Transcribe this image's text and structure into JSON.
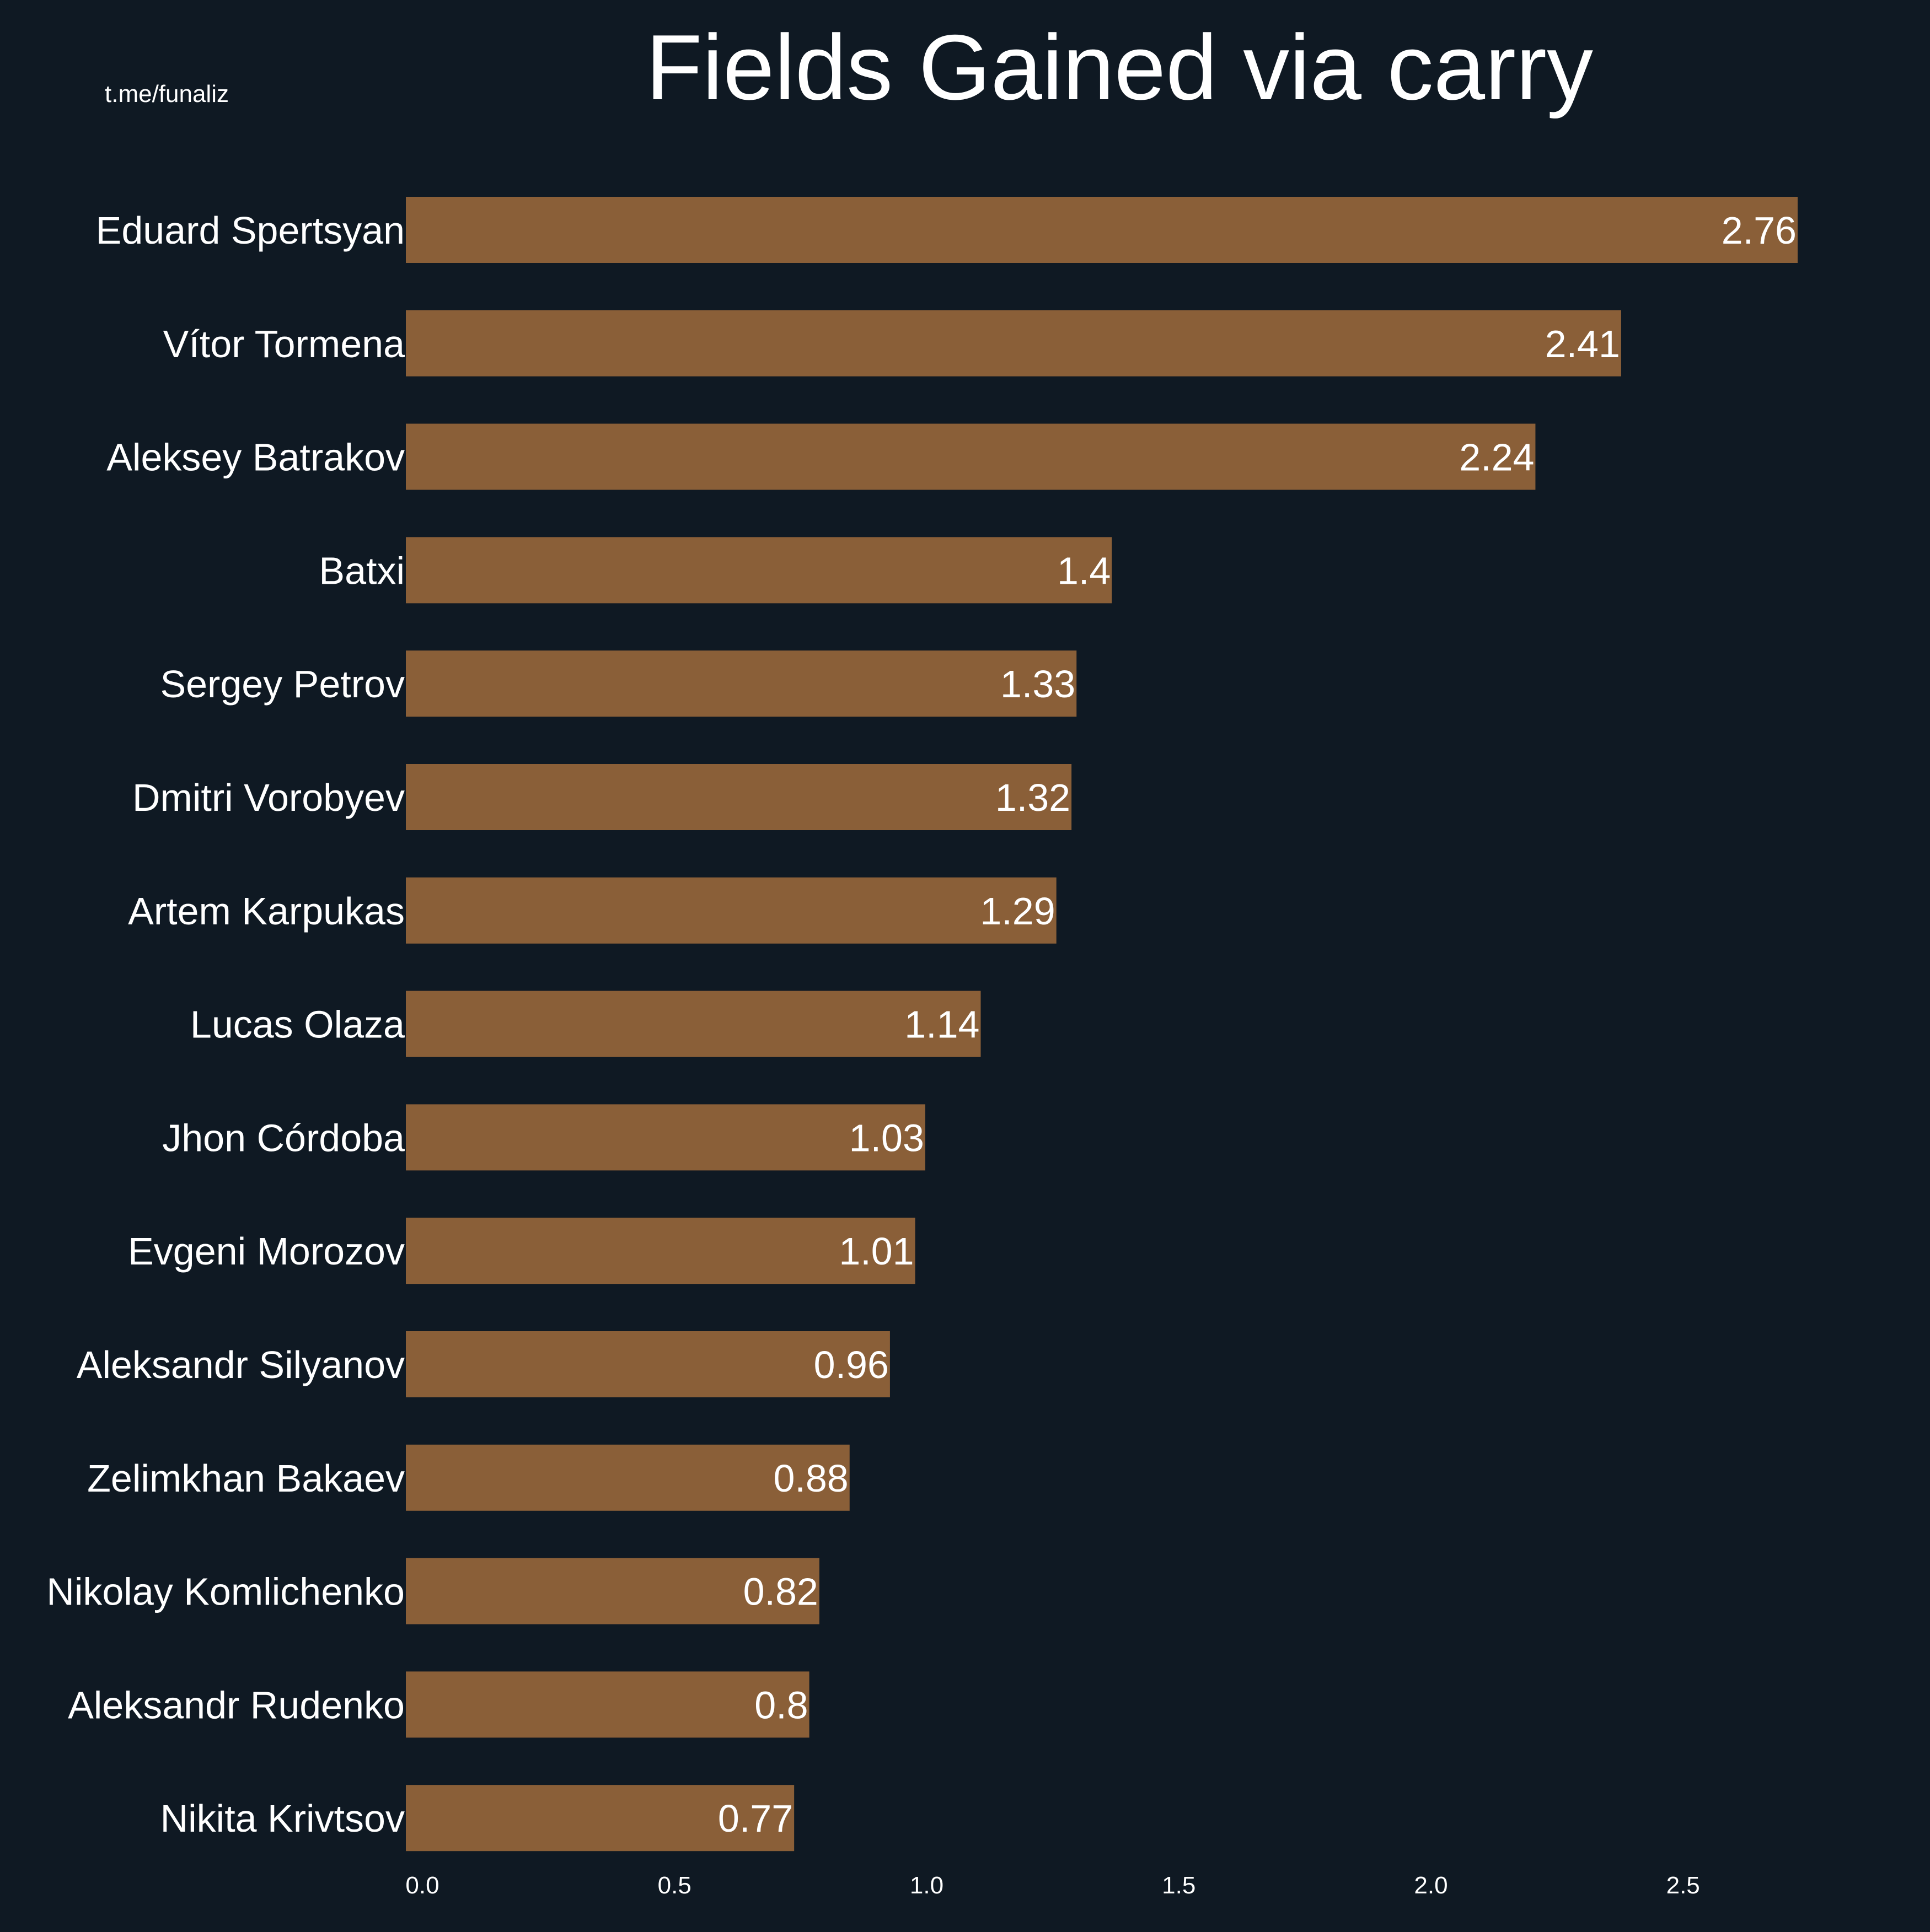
{
  "chart_data": {
    "type": "bar",
    "orientation": "horizontal",
    "title": "Fields Gained via carry",
    "watermark": "t.me/funaliz",
    "xlabel": "",
    "ylabel": "",
    "xlim": [
      0,
      2.9
    ],
    "xticks": [
      0.0,
      0.5,
      1.0,
      1.5,
      2.0,
      2.5
    ],
    "xtick_labels": [
      "0.0",
      "0.5",
      "1.0",
      "1.5",
      "2.0",
      "2.5"
    ],
    "grid": false,
    "legend": "none",
    "bar_color": "#8a5f38",
    "background_color": "#0f1923",
    "text_color": "#ffffff",
    "categories": [
      "Eduard Spertsyan",
      "Vítor Tormena",
      "Aleksey Batrakov",
      "Batxi",
      "Sergey Petrov",
      "Dmitri Vorobyev",
      "Artem Karpukas",
      "Lucas Olaza",
      "Jhon Córdoba",
      "Evgeni Morozov",
      "Aleksandr Silyanov",
      "Zelimkhan Bakaev",
      "Nikolay Komlichenko",
      "Aleksandr Rudenko",
      "Nikita Krivtsov"
    ],
    "values": [
      2.76,
      2.41,
      2.24,
      1.4,
      1.33,
      1.32,
      1.29,
      1.14,
      1.03,
      1.01,
      0.96,
      0.88,
      0.82,
      0.8,
      0.77
    ],
    "value_labels": [
      "2.76",
      "2.41",
      "2.24",
      "1.4",
      "1.33",
      "1.32",
      "1.29",
      "1.14",
      "1.03",
      "1.01",
      "0.96",
      "0.88",
      "0.82",
      "0.8",
      "0.77"
    ]
  }
}
